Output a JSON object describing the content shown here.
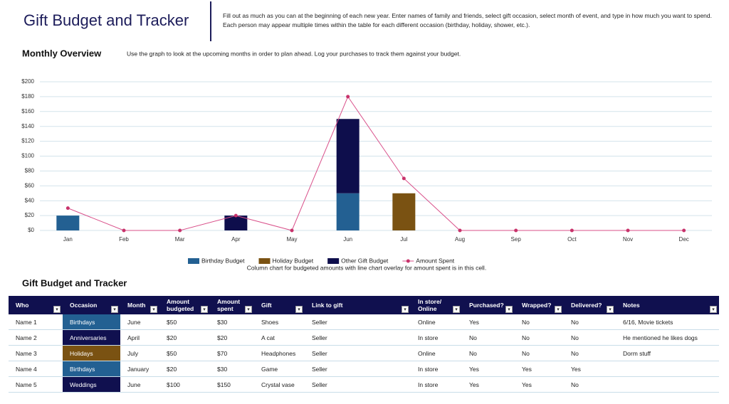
{
  "header": {
    "title": "Gift Budget and Tracker",
    "description": "Fill out as much as you can at the beginning of each new year. Enter names of family and friends, select gift occasion, select month of event, and type in how much you want to spend. Each person may appear multiple times within the table for each different occasion (birthday, holiday, shower, etc.)."
  },
  "overview": {
    "title": "Monthly Overview",
    "subtitle": "Use the graph to look at the upcoming months in order to plan ahead. Log your purchases to track them against your budget."
  },
  "chart_data": {
    "type": "bar",
    "stacked": true,
    "grid": true,
    "legend": "bottom",
    "caption": "Column chart for budgeted amounts with line chart overlay for amount spent is in this cell.",
    "categories": [
      "Jan",
      "Feb",
      "Mar",
      "Apr",
      "May",
      "Jun",
      "Jul",
      "Aug",
      "Sep",
      "Oct",
      "Nov",
      "Dec"
    ],
    "series": [
      {
        "name": "Birthday Budget",
        "color": "#236092",
        "values": [
          20,
          0,
          0,
          0,
          0,
          50,
          0,
          0,
          0,
          0,
          0,
          0
        ]
      },
      {
        "name": "Holiday Budget",
        "color": "#7a5212",
        "values": [
          0,
          0,
          0,
          0,
          0,
          0,
          50,
          0,
          0,
          0,
          0,
          0
        ]
      },
      {
        "name": "Other Gift Budget",
        "color": "#0e0e4c",
        "values": [
          0,
          0,
          0,
          20,
          0,
          100,
          0,
          0,
          0,
          0,
          0,
          0
        ]
      },
      {
        "name": "Amount Spent",
        "type": "line",
        "color": "#d9508a",
        "values": [
          30,
          0,
          0,
          20,
          0,
          180,
          70,
          0,
          0,
          0,
          0,
          0
        ]
      }
    ],
    "ylim": [
      0,
      200
    ],
    "yticks": [
      {
        "value": 0,
        "label": "$0"
      },
      {
        "value": 20,
        "label": "$20"
      },
      {
        "value": 40,
        "label": "$40"
      },
      {
        "value": 60,
        "label": "$60"
      },
      {
        "value": 80,
        "label": "$80"
      },
      {
        "value": 100,
        "label": "$100"
      },
      {
        "value": 120,
        "label": "$120"
      },
      {
        "value": 140,
        "label": "$140"
      },
      {
        "value": 160,
        "label": "$160"
      },
      {
        "value": 180,
        "label": "$180"
      },
      {
        "value": 200,
        "label": "$200"
      }
    ]
  },
  "table": {
    "title": "Gift Budget and Tracker",
    "columns": [
      "Who",
      "Occasion",
      "Month",
      "Amount budgeted",
      "Amount spent",
      "Gift",
      "Link to gift",
      "In store/ Online",
      "Purchased?",
      "Wrapped?",
      "Delivered?",
      "Notes"
    ],
    "occasion_fill": [
      "#236092",
      "#10104f",
      "#7a5212",
      "#236092",
      "#10104f"
    ],
    "rows": [
      [
        "Name 1",
        "Birthdays",
        "June",
        "$50",
        "$30",
        "Shoes",
        "Seller",
        "Online",
        "Yes",
        "No",
        "No",
        "6/16, Movie tickets"
      ],
      [
        "Name 2",
        "Anniversaries",
        "April",
        "$20",
        "$20",
        "A cat",
        "Seller",
        "In store",
        "No",
        "No",
        "No",
        "He mentioned he likes dogs"
      ],
      [
        "Name 3",
        "Holidays",
        "July",
        "$50",
        "$70",
        "Headphones",
        "Seller",
        "Online",
        "No",
        "No",
        "No",
        "Dorm stuff"
      ],
      [
        "Name 4",
        "Birthdays",
        "January",
        "$20",
        "$30",
        "Game",
        "Seller",
        "In store",
        "Yes",
        "Yes",
        "Yes",
        null
      ],
      [
        "Name 5",
        "Weddings",
        "June",
        "$100",
        "$150",
        "Crystal vase",
        "Seller",
        "In store",
        "Yes",
        "Yes",
        "No",
        null
      ]
    ]
  }
}
